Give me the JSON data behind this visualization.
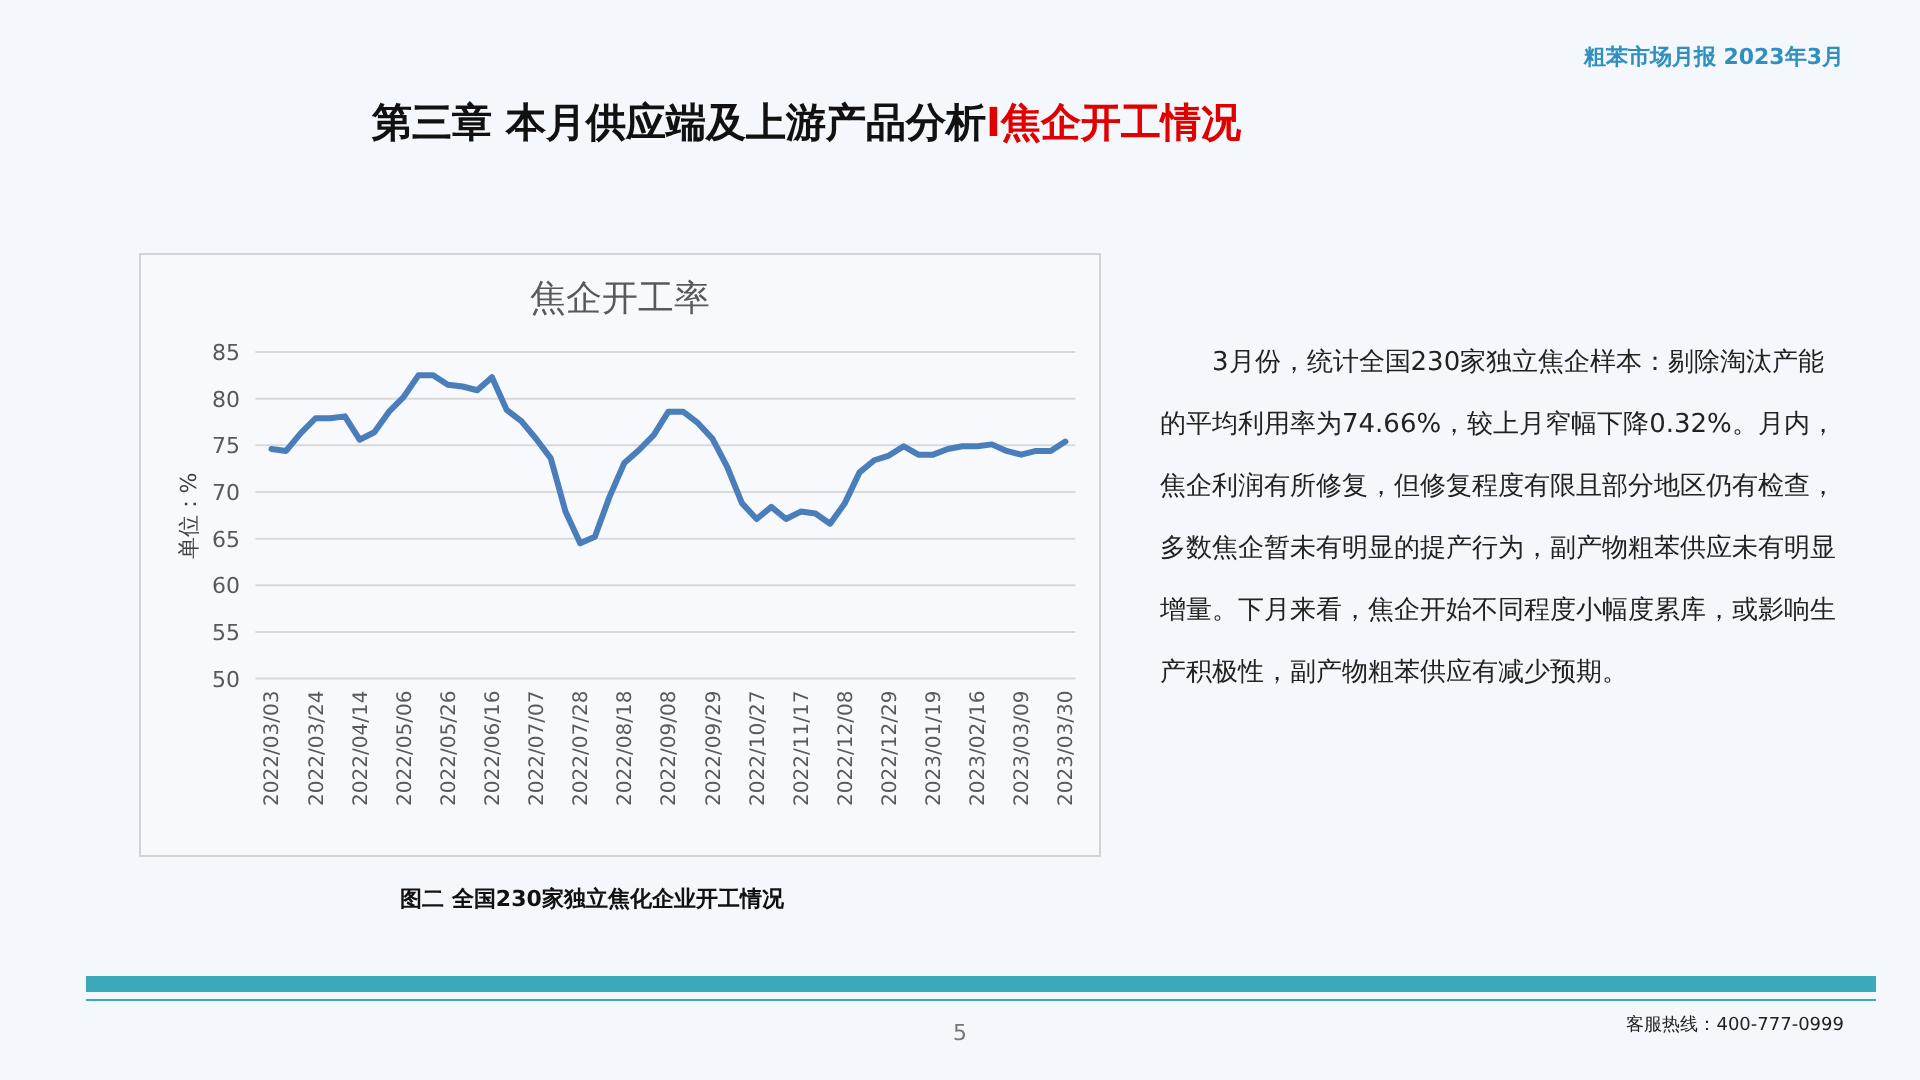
{
  "chart_data": {
    "type": "line",
    "title": "焦企开工率",
    "ylabel": "单位：%",
    "annotations": [
      "第三章 本月供应端及上游产品分析",
      "I焦企开工情况",
      "粗苯市场月报   2023年3月",
      "图二 全国230家独立焦化企业开工情况",
      "3月份，统计全国230家独立焦企样本：剔除淘汰产能的平均利用率为74.66%，较上月窄幅下降0.32%。月内，焦企利润有所修复，但修复程度有限且部分地区仍有检查，多数焦企暂未有明显的提产行为，副产物粗苯供应未有明显增量。下月来看，焦企开始不同程度小幅度累库，或影响生产积极性，副产物粗苯供应有减少预期。",
      "5",
      "客服热线：400-777-0999"
    ],
    "categories": [
      "2022/03/03",
      null,
      null,
      "2022/03/24",
      null,
      null,
      "2022/04/14",
      null,
      null,
      "2022/05/06",
      null,
      null,
      "2022/05/26",
      null,
      null,
      "2022/06/16",
      null,
      null,
      "2022/07/07",
      null,
      null,
      "2022/07/28",
      null,
      null,
      "2022/08/18",
      null,
      null,
      "2022/09/08",
      null,
      null,
      "2022/09/29",
      null,
      null,
      "2022/10/27",
      null,
      null,
      "2022/11/17",
      null,
      null,
      "2022/12/08",
      null,
      null,
      "2022/12/29",
      null,
      null,
      "2023/01/19",
      null,
      null,
      "2023/02/16",
      null,
      null,
      "2023/03/09",
      null,
      null,
      "2023/03/30"
    ],
    "values": [
      74.6,
      74.4,
      76.3,
      77.9,
      77.9,
      78.1,
      75.6,
      76.4,
      78.6,
      80.2,
      82.5,
      82.5,
      81.5,
      81.3,
      80.9,
      82.3,
      78.8,
      77.6,
      75.7,
      73.6,
      67.9,
      64.5,
      65.2,
      69.5,
      73.1,
      74.5,
      76.1,
      78.6,
      78.6,
      77.4,
      75.7,
      72.7,
      68.8,
      67.1,
      68.4,
      67.1,
      67.9,
      67.7,
      66.6,
      68.8,
      72.1,
      73.4,
      73.9,
      74.9,
      74.0,
      74.0,
      74.6,
      74.9,
      74.9,
      75.1,
      74.4,
      74.0,
      74.4,
      74.4,
      75.4
    ],
    "color": "#4a7ebb",
    "ylim": [
      50,
      85
    ],
    "yticks": [
      50,
      55,
      60,
      65,
      70,
      75,
      80,
      85
    ],
    "grid": "y"
  }
}
